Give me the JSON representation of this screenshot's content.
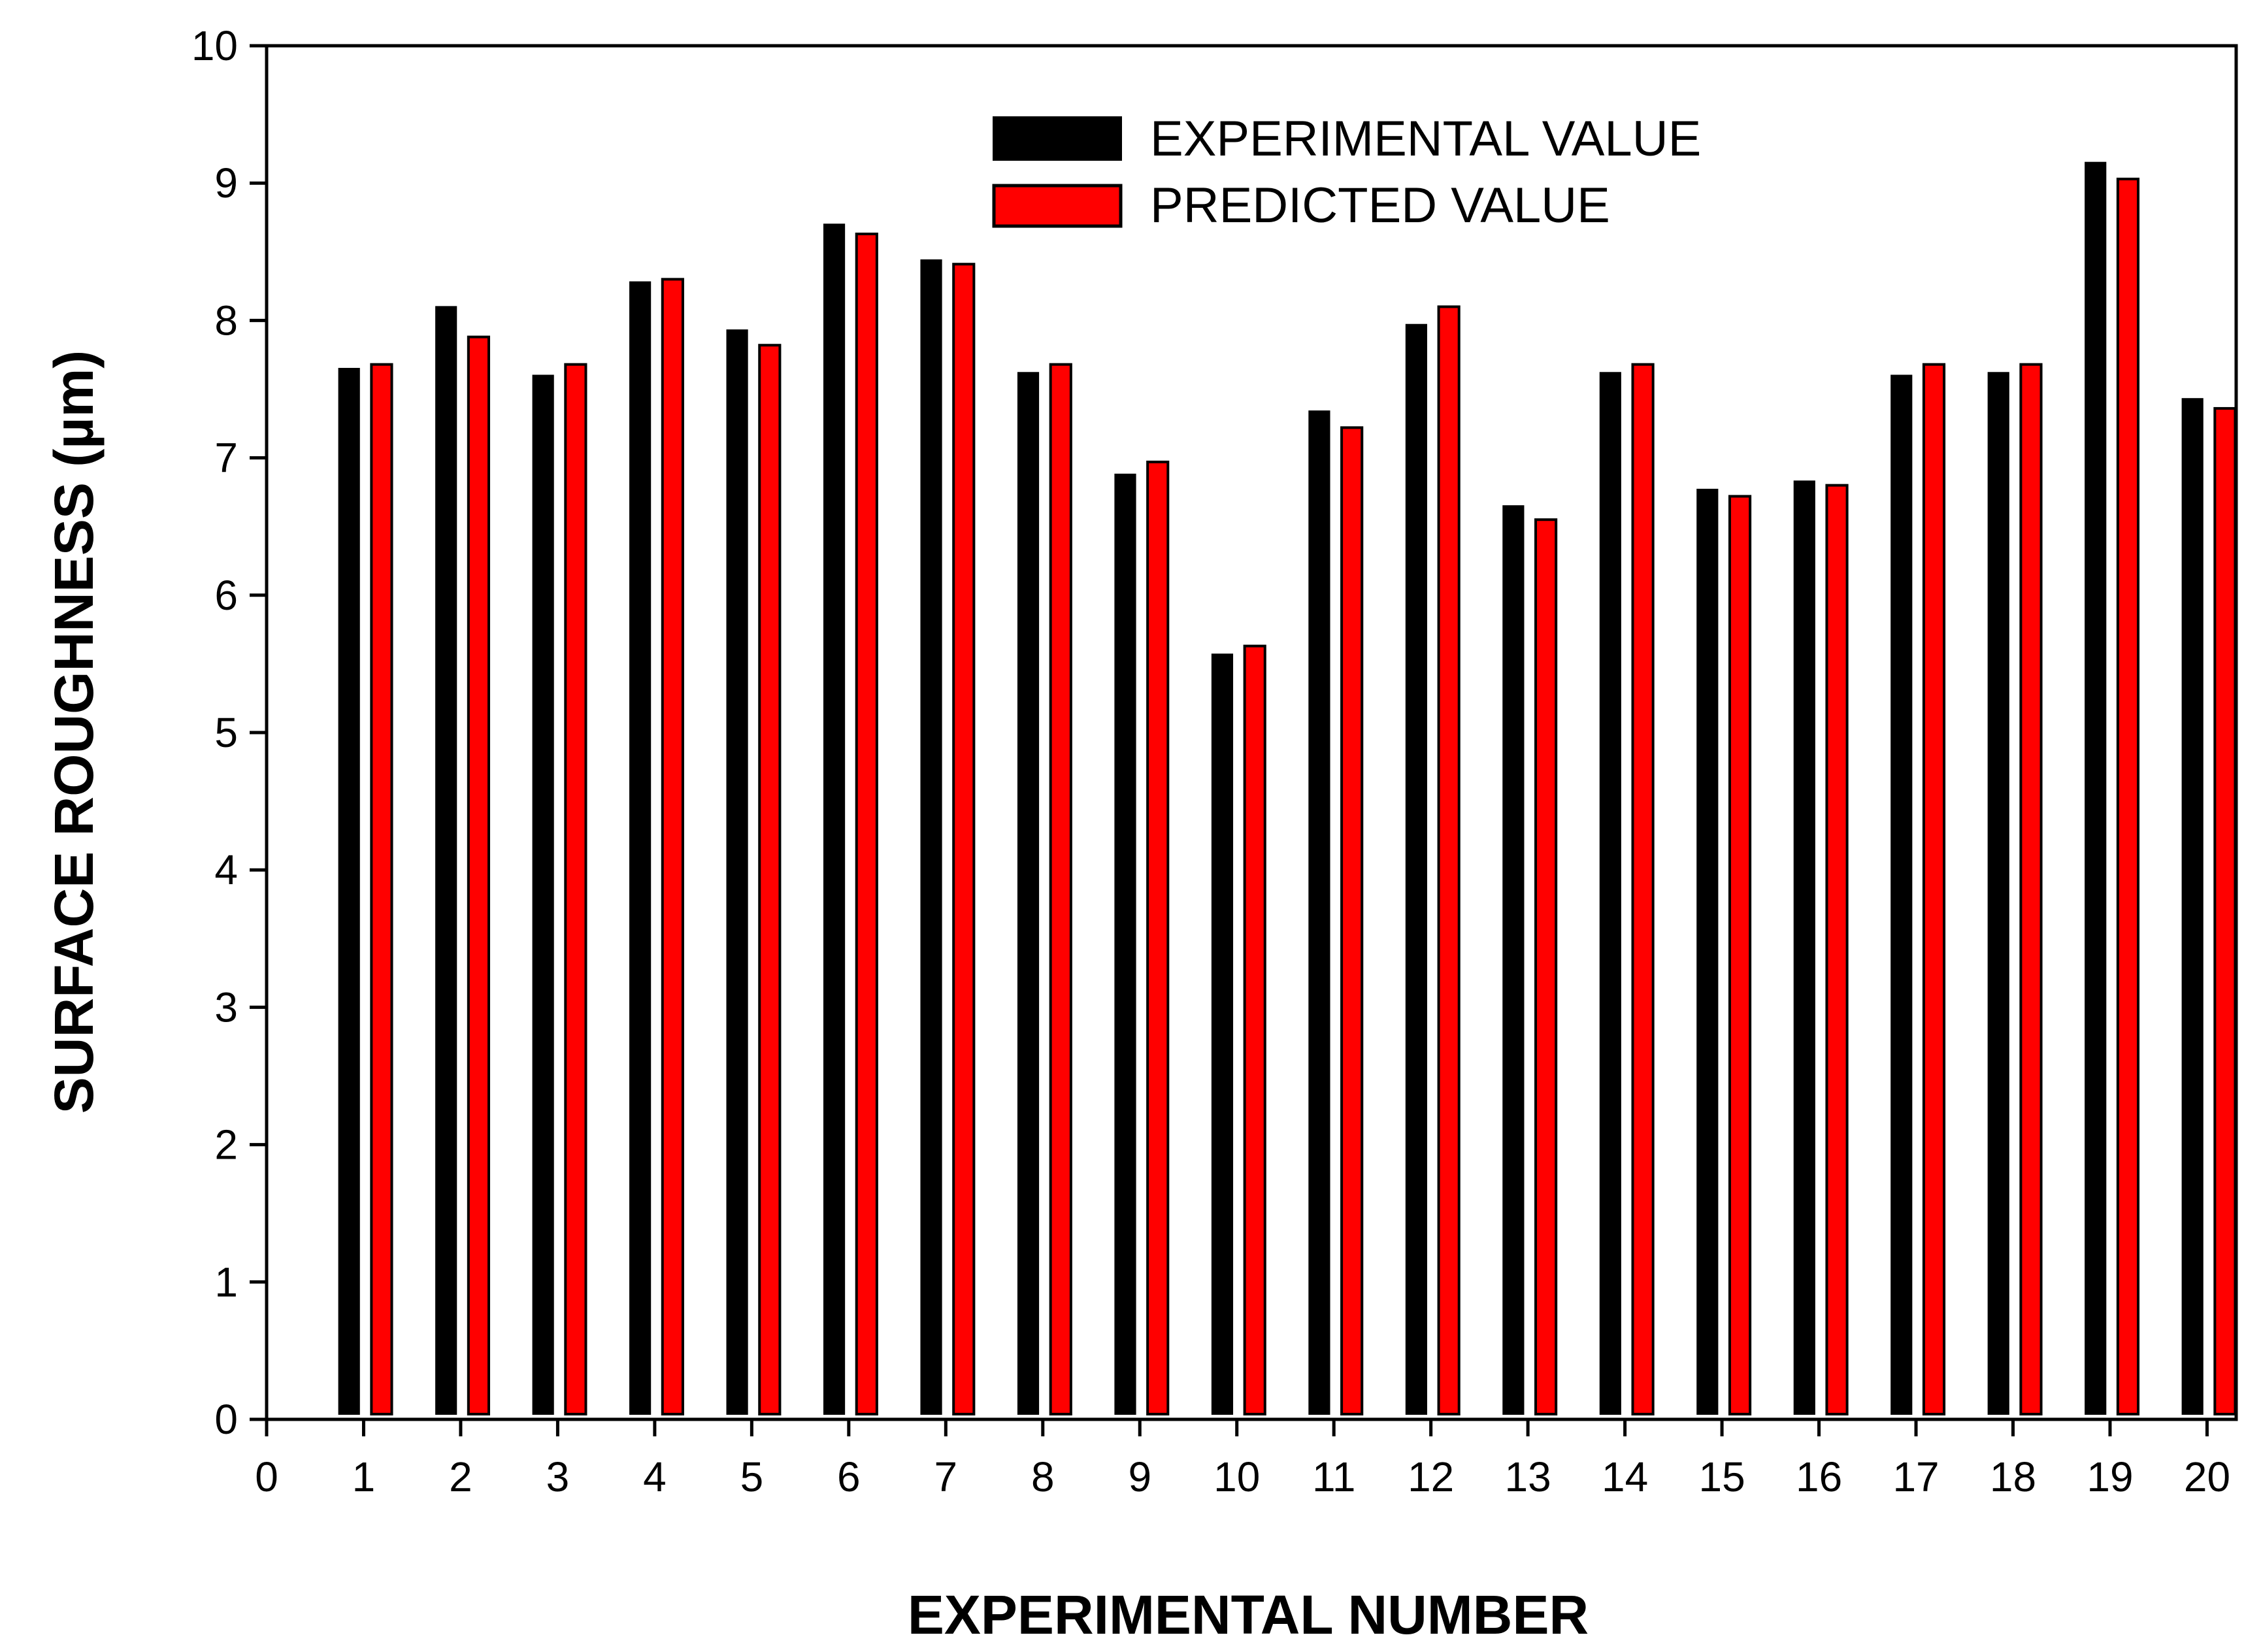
{
  "chart_data": {
    "type": "bar",
    "title": "",
    "xlabel": "EXPERIMENTAL NUMBER",
    "ylabel": "SURFACE ROUGHNESS (µm)",
    "xlim": [
      0,
      20.3
    ],
    "ylim": [
      0,
      10
    ],
    "x_ticks": [
      "0",
      "1",
      "2",
      "3",
      "4",
      "5",
      "6",
      "7",
      "8",
      "9",
      "10",
      "11",
      "12",
      "13",
      "14",
      "15",
      "16",
      "17",
      "18",
      "19",
      "20"
    ],
    "y_ticks": [
      "0",
      "1",
      "2",
      "3",
      "4",
      "5",
      "6",
      "7",
      "8",
      "9",
      "10"
    ],
    "categories": [
      1,
      2,
      3,
      4,
      5,
      6,
      7,
      8,
      9,
      10,
      11,
      12,
      13,
      14,
      15,
      16,
      17,
      18,
      19,
      20
    ],
    "series": [
      {
        "name": "EXPERIMENTAL VALUE",
        "color": "#000000",
        "values": [
          7.65,
          8.1,
          7.6,
          8.28,
          7.93,
          8.7,
          8.44,
          7.62,
          6.88,
          5.57,
          7.34,
          7.97,
          6.65,
          7.62,
          6.77,
          6.83,
          7.6,
          7.62,
          9.15,
          7.43
        ]
      },
      {
        "name": "PREDICTED VALUE",
        "color": "#ff0000",
        "values": [
          7.68,
          7.88,
          7.68,
          8.3,
          7.82,
          8.63,
          8.41,
          7.68,
          6.97,
          5.63,
          7.22,
          8.1,
          6.55,
          7.68,
          6.72,
          6.8,
          7.68,
          7.68,
          9.03,
          7.36
        ]
      }
    ],
    "legend": {
      "placement": "top-center"
    },
    "grid": false
  }
}
